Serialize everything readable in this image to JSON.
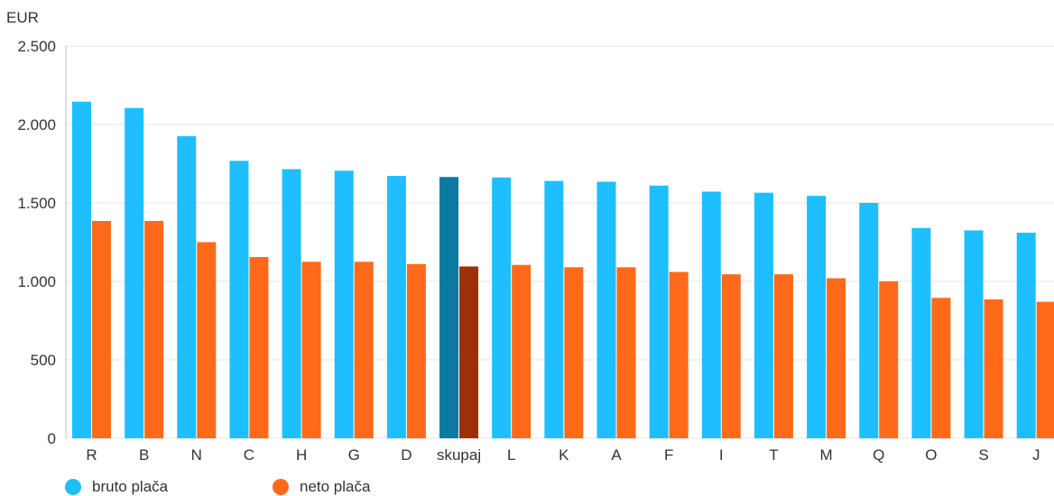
{
  "chart_data": {
    "type": "bar",
    "unit_label": "EUR",
    "ylim": [
      0,
      2500
    ],
    "yticks": [
      0,
      500,
      1000,
      1500,
      2000,
      2500
    ],
    "ytick_labels": [
      "0",
      "500",
      "1.000",
      "1.500",
      "2.000",
      "2.500"
    ],
    "grid": true,
    "legend_position": "bottom-left",
    "categories": [
      "R",
      "B",
      "N",
      "C",
      "H",
      "G",
      "D",
      "skupaj",
      "L",
      "K",
      "A",
      "F",
      "I",
      "T",
      "M",
      "Q",
      "O",
      "S",
      "J"
    ],
    "highlight_category": "skupaj",
    "series": [
      {
        "name": "bruto plača",
        "color": "#1ebfff",
        "highlight_color": "#0a7aa0",
        "values": [
          2145,
          2105,
          1925,
          1768,
          1715,
          1705,
          1672,
          1665,
          1662,
          1640,
          1635,
          1610,
          1572,
          1565,
          1545,
          1500,
          1340,
          1325,
          1310
        ]
      },
      {
        "name": "neto plača",
        "color": "#ff6a1a",
        "highlight_color": "#9a3208",
        "values": [
          1385,
          1385,
          1250,
          1155,
          1125,
          1125,
          1110,
          1095,
          1105,
          1090,
          1090,
          1060,
          1045,
          1045,
          1020,
          1000,
          895,
          885,
          870
        ]
      }
    ]
  }
}
